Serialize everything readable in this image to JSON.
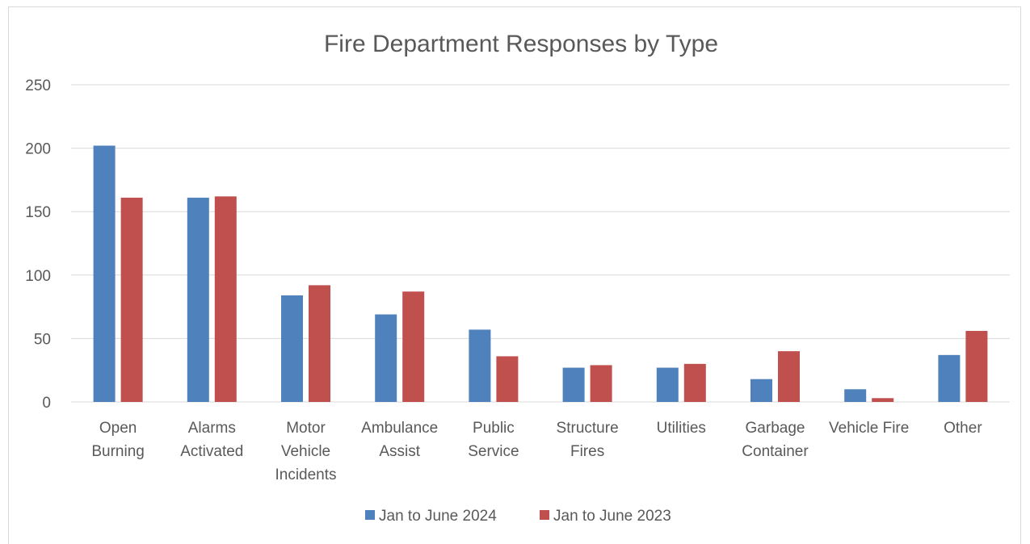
{
  "chart_data": {
    "type": "bar",
    "title": "Fire Department Responses by Type",
    "xlabel": "",
    "ylabel": "",
    "ylim": [
      0,
      250
    ],
    "yticks": [
      0,
      50,
      100,
      150,
      200,
      250
    ],
    "grid": true,
    "legend_position": "bottom",
    "categories": [
      [
        "Open",
        "Burning"
      ],
      [
        "Alarms",
        "Activated"
      ],
      [
        "Motor",
        "Vehicle",
        "Incidents"
      ],
      [
        "Ambulance",
        "Assist"
      ],
      [
        "Public",
        "Service"
      ],
      [
        "Structure",
        "Fires"
      ],
      [
        "Utilities"
      ],
      [
        "Garbage",
        "Container"
      ],
      [
        "Vehicle Fire"
      ],
      [
        "Other"
      ]
    ],
    "series": [
      {
        "name": "Jan to June 2024",
        "color": "#4f81bd",
        "values": [
          202,
          161,
          84,
          69,
          57,
          27,
          27,
          18,
          10,
          37
        ]
      },
      {
        "name": "Jan to June 2023",
        "color": "#c0504d",
        "values": [
          161,
          162,
          92,
          87,
          36,
          29,
          30,
          40,
          3,
          56
        ]
      }
    ]
  }
}
